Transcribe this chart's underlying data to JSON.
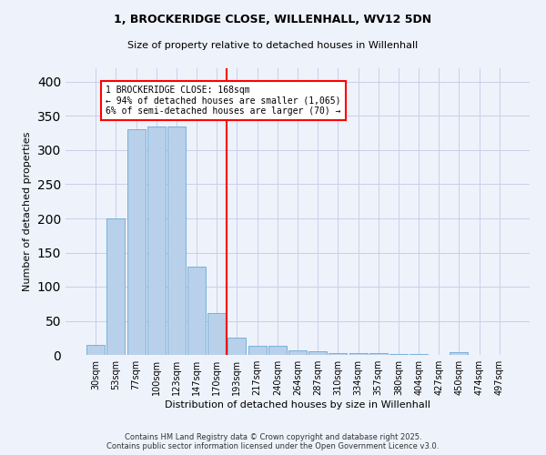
{
  "title_line1": "1, BROCKERIDGE CLOSE, WILLENHALL, WV12 5DN",
  "title_line2": "Size of property relative to detached houses in Willenhall",
  "xlabel": "Distribution of detached houses by size in Willenhall",
  "ylabel": "Number of detached properties",
  "bin_labels": [
    "30sqm",
    "53sqm",
    "77sqm",
    "100sqm",
    "123sqm",
    "147sqm",
    "170sqm",
    "193sqm",
    "217sqm",
    "240sqm",
    "264sqm",
    "287sqm",
    "310sqm",
    "334sqm",
    "357sqm",
    "380sqm",
    "404sqm",
    "427sqm",
    "450sqm",
    "474sqm",
    "497sqm"
  ],
  "bar_values": [
    15,
    200,
    330,
    335,
    335,
    130,
    62,
    25,
    14,
    14,
    7,
    5,
    3,
    3,
    3,
    1,
    1,
    0,
    4,
    0,
    0
  ],
  "bar_color": "#b8d0ea",
  "bar_edge_color": "#6aaad4",
  "vline_index": 6.5,
  "vline_color": "red",
  "annotation_text": "1 BROCKERIDGE CLOSE: 168sqm\n← 94% of detached houses are smaller (1,065)\n6% of semi-detached houses are larger (70) →",
  "annotation_box_color": "white",
  "annotation_box_edge_color": "red",
  "ylim": [
    0,
    420
  ],
  "yticks": [
    0,
    50,
    100,
    150,
    200,
    250,
    300,
    350,
    400
  ],
  "footer_line1": "Contains HM Land Registry data © Crown copyright and database right 2025.",
  "footer_line2": "Contains public sector information licensed under the Open Government Licence v3.0.",
  "bg_color": "#eef2fb",
  "grid_color": "#c8d0e8",
  "title1_fontsize": 9,
  "title2_fontsize": 8,
  "ylabel_fontsize": 8,
  "xlabel_fontsize": 8,
  "tick_fontsize": 7,
  "footer_fontsize": 6,
  "ann_fontsize": 7
}
